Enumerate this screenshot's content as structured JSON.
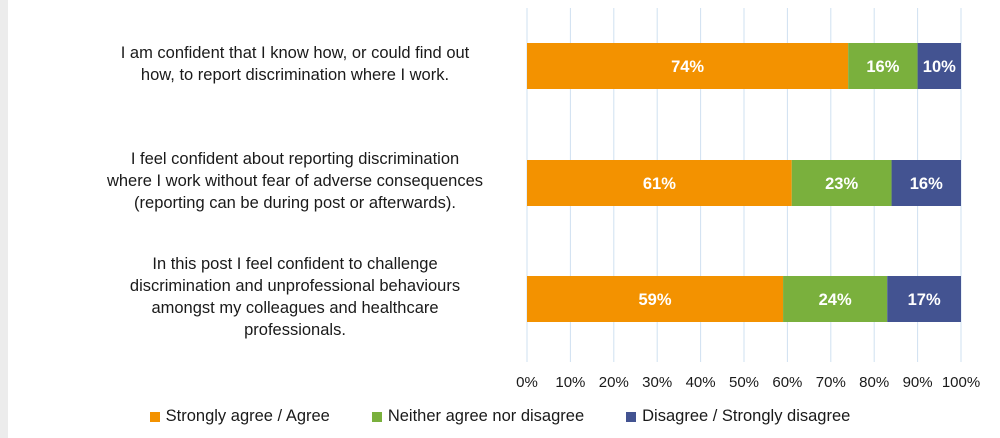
{
  "chart_data": {
    "type": "bar",
    "orientation": "horizontal",
    "stacked": true,
    "categories": [
      "I am confident that I know how, or could find out\nhow, to report discrimination where I work.",
      "I feel confident about reporting discrimination\nwhere I work without fear of adverse consequences\n(reporting can be during post or afterwards).",
      "In this post I feel confident to challenge\ndiscrimination and unprofessional behaviours\namongst my colleagues and healthcare\nprofessionals."
    ],
    "series": [
      {
        "name": "Strongly agree / Agree",
        "color": "#f39200",
        "values": [
          74,
          61,
          59
        ]
      },
      {
        "name": "Neither agree nor disagree",
        "color": "#7ab03d",
        "values": [
          16,
          23,
          24
        ]
      },
      {
        "name": "Disagree / Strongly disagree",
        "color": "#435391",
        "values": [
          10,
          16,
          17
        ]
      }
    ],
    "data_labels": [
      [
        "74%",
        "61%",
        "59%"
      ],
      [
        "16%",
        "23%",
        "24%"
      ],
      [
        "10%",
        "16%",
        "17%"
      ]
    ],
    "xlim": [
      0,
      100
    ],
    "xticks": [
      "0%",
      "10%",
      "20%",
      "30%",
      "40%",
      "50%",
      "60%",
      "70%",
      "80%",
      "90%",
      "100%"
    ],
    "grid": "vertical",
    "legend_position": "bottom",
    "grid_color": "#cfe0f1"
  }
}
